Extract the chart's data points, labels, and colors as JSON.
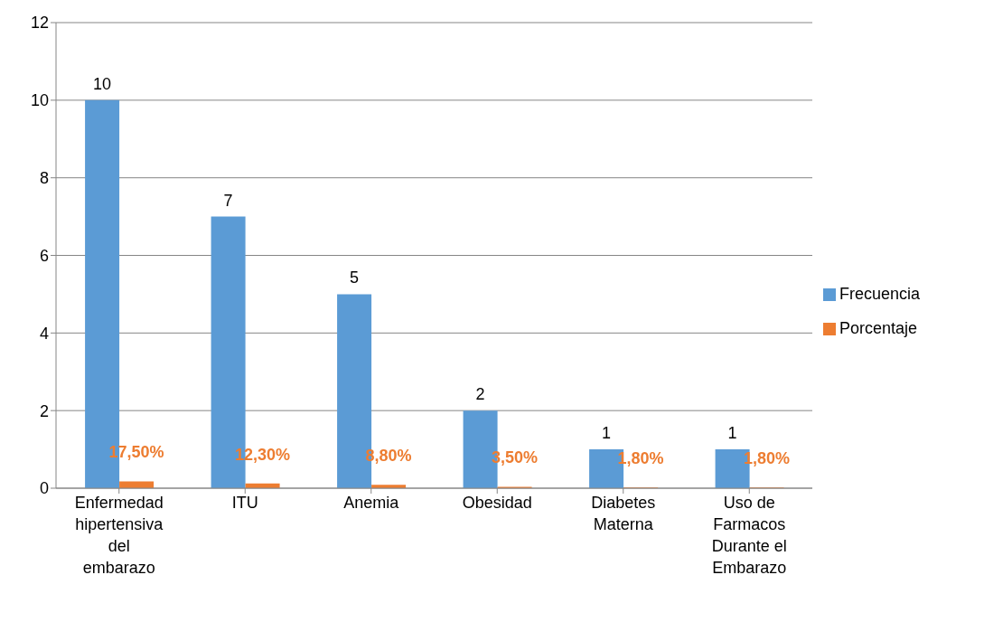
{
  "chart_data": {
    "type": "bar",
    "categories": [
      "Enfermedad hipertensiva del embarazo",
      "ITU",
      "Anemia",
      "Obesidad",
      "Diabetes Materna",
      "Uso de Farmacos Durante el Embarazo"
    ],
    "series": [
      {
        "name": "Frecuencia",
        "color": "#5b9bd5",
        "values": [
          10,
          7,
          5,
          2,
          1,
          1
        ],
        "value_labels": [
          "10",
          "7",
          "5",
          "2",
          "1",
          "1"
        ]
      },
      {
        "name": "Porcentaje",
        "color": "#ed7d31",
        "values": [
          0.175,
          0.123,
          0.088,
          0.035,
          0.018,
          0.018
        ],
        "value_labels": [
          "17,50%",
          "12,30%",
          "8,80%",
          "3,50%",
          "1,80%",
          "1,80%"
        ]
      }
    ],
    "ylim": [
      0,
      12
    ],
    "yticks": [
      0,
      2,
      4,
      6,
      8,
      10,
      12
    ],
    "grid": "y",
    "legend": "right"
  }
}
